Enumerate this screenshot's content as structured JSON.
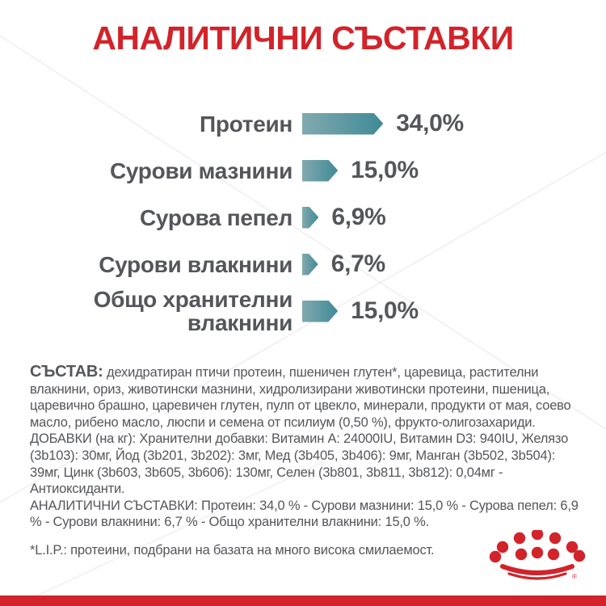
{
  "title": "АНАЛИТИЧНИ СЪСТАВКИ",
  "chart_data": {
    "type": "bar",
    "orientation": "horizontal",
    "title": "АНАЛИТИЧНИ СЪСТАВКИ",
    "unit": "%",
    "categories": [
      "Протеин",
      "Сурови мазнини",
      "Сурова пепел",
      "Сурови влакнини",
      "Общо хранителни влакнини"
    ],
    "values": [
      34.0,
      15.0,
      6.9,
      6.7,
      15.0
    ],
    "value_labels": [
      "34,0%",
      "15,0%",
      "6,9%",
      "6,7%",
      "15,0%"
    ],
    "xlim": [
      0,
      40
    ],
    "grid": "off",
    "bar_gradient": [
      "#82A9AE",
      "#3F8A97"
    ]
  },
  "sections": {
    "composition_label": "СЪСТАВ:",
    "composition_text": "дехидратиран птичи протеин, пшеничен глутен*, царевица, растителни влакнини, ориз, животински мазнини, хидролизирани животински протеини, пшеница, царевично брашно, царевичен глутен, пулп от цвекло, минерали, продукти от мая, соево масло, рибено масло, люспи и семена от псилиум (0,50 %), фрукто-олигозахариди.",
    "additives_text": "ДОБАВКИ (на кг): Хранителни добавки: Витамин А: 24000IU, Витамин D3: 940IU, Желязо (3b103): 30мг, Йод (3b201, 3b202): 3мг, Мед (3b405, 3b406): 9мг, Манган (3b502, 3b504): 39мг, Цинк (3b603, 3b605, 3b606): 130мг, Селен (3b801, 3b811, 3b812): 0,04мг - Антиоксиданти.",
    "analytical_text": "АНАЛИТИЧНИ СЪСТАВКИ: Протеин: 34,0 % - Сурови мазнини: 15,0 % - Сурова пепел: 6,9 % - Сурови влакнини: 6,7 % - Общо хранителни влакнини: 15,0 %.",
    "footnote": "*L.I.P.: протеини, подбрани на базата на много висока смилаемост."
  },
  "colors": {
    "brand_red": "#D2232A",
    "text_gray": "#54565A",
    "bar_teal_light": "#82A9AE",
    "bar_teal_dark": "#3F8A97"
  },
  "logo": {
    "name": "royal-canin-crown",
    "registered_mark": "®"
  }
}
